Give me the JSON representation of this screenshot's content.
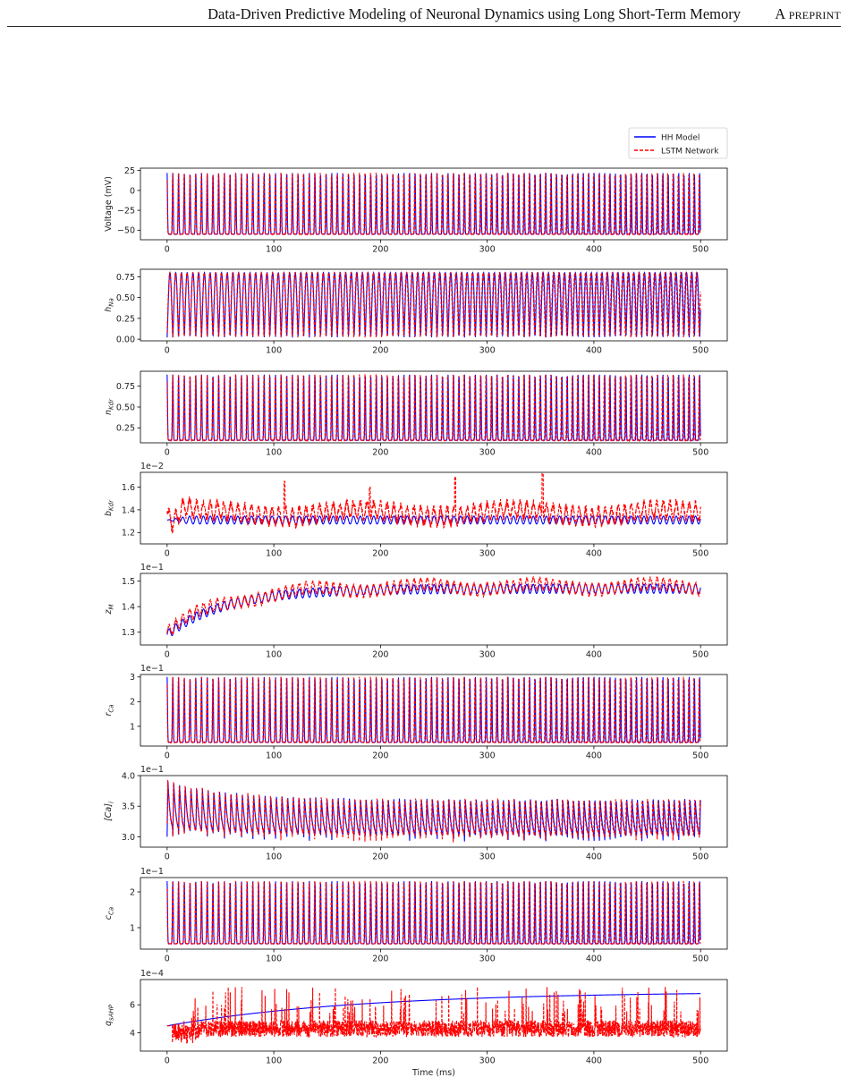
{
  "header": {
    "title": "Data-Driven Predictive Modeling of Neuronal Dynamics using Long Short-Term Memory",
    "tag": "A preprint"
  },
  "legend": {
    "placement": "top-right",
    "entries": [
      {
        "label": "HH Model",
        "color": "#0000ff",
        "style": "solid"
      },
      {
        "label": "LSTM Network",
        "color": "#ff0000",
        "style": "dashed"
      }
    ]
  },
  "chart_data": [
    {
      "type": "line",
      "ylabel": "Voltage (mV)",
      "ylabel_sub": "",
      "exponent": "",
      "xlim": [
        -25,
        525
      ],
      "ylim": [
        -62,
        28
      ],
      "yticks": [
        {
          "v": 25,
          "label": "25"
        },
        {
          "v": 0,
          "label": "0"
        },
        {
          "v": -25,
          "label": "−25"
        },
        {
          "v": -50,
          "label": "−50"
        }
      ],
      "xticks": [
        0,
        100,
        200,
        300,
        400,
        500
      ],
      "pattern": "spike",
      "base": -55,
      "peak": 22,
      "periodStart": 5.4,
      "periodEnd": 4.9,
      "lstmPhase": 0.035,
      "series": [
        {
          "name": "HH Model",
          "color": "#0000ff"
        },
        {
          "name": "LSTM Network",
          "color": "#ff0000"
        }
      ]
    },
    {
      "type": "line",
      "ylabel": "h",
      "ylabel_sub": "Na",
      "exponent": "",
      "xlim": [
        -25,
        525
      ],
      "ylim": [
        -0.02,
        0.84
      ],
      "yticks": [
        {
          "v": 0,
          "label": "0.00"
        },
        {
          "v": 0.25,
          "label": "0.25"
        },
        {
          "v": 0.5,
          "label": "0.50"
        },
        {
          "v": 0.75,
          "label": "0.75"
        }
      ],
      "xticks": [
        0,
        100,
        200,
        300,
        400,
        500
      ],
      "pattern": "wide",
      "base": 0.02,
      "peak": 0.8,
      "periodStart": 5.4,
      "periodEnd": 4.9,
      "lstmPhase": 0.035,
      "series": [
        {
          "name": "HH Model",
          "color": "#0000ff"
        },
        {
          "name": "LSTM Network",
          "color": "#ff0000"
        }
      ]
    },
    {
      "type": "line",
      "ylabel": "n",
      "ylabel_sub": "Kdr",
      "exponent": "",
      "xlim": [
        -25,
        525
      ],
      "ylim": [
        0.07,
        0.93
      ],
      "yticks": [
        {
          "v": 0.25,
          "label": "0.25"
        },
        {
          "v": 0.5,
          "label": "0.50"
        },
        {
          "v": 0.75,
          "label": "0.75"
        }
      ],
      "xticks": [
        0,
        100,
        200,
        300,
        400,
        500
      ],
      "pattern": "spike",
      "base": 0.1,
      "peak": 0.89,
      "periodStart": 5.4,
      "periodEnd": 4.9,
      "lstmPhase": 0.035,
      "series": [
        {
          "name": "HH Model",
          "color": "#0000ff"
        },
        {
          "name": "LSTM Network",
          "color": "#ff0000"
        }
      ]
    },
    {
      "type": "line",
      "ylabel": "b",
      "ylabel_sub": "Kdr",
      "exponent": "1e−2",
      "xlim": [
        -25,
        525
      ],
      "ylim": [
        1.1,
        1.73
      ],
      "yticks": [
        {
          "v": 1.2,
          "label": "1.2"
        },
        {
          "v": 1.4,
          "label": "1.4"
        },
        {
          "v": 1.6,
          "label": "1.6"
        }
      ],
      "xticks": [
        0,
        100,
        200,
        300,
        400,
        500
      ],
      "pattern": "slowSine",
      "hhCenter": 1.31,
      "hhAmp": 0.035,
      "lstmCenter": 1.37,
      "lstmAmp": 0.07,
      "spikesAt": [
        [
          110,
          1.65
        ],
        [
          190,
          1.6
        ],
        [
          270,
          1.69
        ],
        [
          352,
          1.72
        ]
      ],
      "periodStart": 6.5,
      "periodEnd": 6.0,
      "series": [
        {
          "name": "HH Model",
          "color": "#0000ff"
        },
        {
          "name": "LSTM Network",
          "color": "#ff0000"
        }
      ]
    },
    {
      "type": "line",
      "ylabel": "z",
      "ylabel_sub": "M",
      "exponent": "1e−1",
      "xlim": [
        -25,
        525
      ],
      "ylim": [
        1.25,
        1.53
      ],
      "yticks": [
        {
          "v": 1.3,
          "label": "1.3"
        },
        {
          "v": 1.4,
          "label": "1.4"
        },
        {
          "v": 1.5,
          "label": "1.5"
        }
      ],
      "xticks": [
        0,
        100,
        200,
        300,
        400,
        500
      ],
      "pattern": "rise",
      "start": 1.29,
      "plateau": 1.47,
      "tau": 55,
      "hhAmp": 0.018,
      "lstmAmp": 0.022,
      "periodStart": 6.5,
      "periodEnd": 6.0,
      "series": [
        {
          "name": "HH Model",
          "color": "#0000ff"
        },
        {
          "name": "LSTM Network",
          "color": "#ff0000"
        }
      ]
    },
    {
      "type": "line",
      "ylabel": "r",
      "ylabel_sub": "Ca",
      "exponent": "1e−1",
      "xlim": [
        -25,
        525
      ],
      "ylim": [
        0.2,
        3.1
      ],
      "yticks": [
        {
          "v": 1,
          "label": "1"
        },
        {
          "v": 2,
          "label": "2"
        },
        {
          "v": 3,
          "label": "3"
        }
      ],
      "xticks": [
        0,
        100,
        200,
        300,
        400,
        500
      ],
      "pattern": "spike",
      "base": 0.35,
      "peak": 3.0,
      "periodStart": 5.4,
      "periodEnd": 4.9,
      "lstmPhase": 0.035,
      "series": [
        {
          "name": "HH Model",
          "color": "#0000ff"
        },
        {
          "name": "LSTM Network",
          "color": "#ff0000"
        }
      ]
    },
    {
      "type": "line",
      "ylabel": "[Ca]",
      "ylabel_sub": "i",
      "exponent": "1e−1",
      "xlim": [
        -25,
        525
      ],
      "ylim": [
        2.83,
        4.0
      ],
      "yticks": [
        {
          "v": 3.0,
          "label": "3.0"
        },
        {
          "v": 3.5,
          "label": "3.5"
        },
        {
          "v": 4.0,
          "label": "4.0"
        }
      ],
      "xticks": [
        0,
        100,
        200,
        300,
        400,
        500
      ],
      "pattern": "decayOsc",
      "top0": 3.92,
      "topEnd": 3.62,
      "low0": 3.0,
      "lowEnd": 2.92,
      "tau": 60,
      "periodStart": 5.4,
      "periodEnd": 4.9,
      "lstmPhase": 0.035,
      "series": [
        {
          "name": "HH Model",
          "color": "#0000ff"
        },
        {
          "name": "LSTM Network",
          "color": "#ff0000"
        }
      ]
    },
    {
      "type": "line",
      "ylabel": "c",
      "ylabel_sub": "Ca",
      "exponent": "1e−1",
      "xlim": [
        -25,
        525
      ],
      "ylim": [
        0.4,
        2.4
      ],
      "yticks": [
        {
          "v": 1,
          "label": "1"
        },
        {
          "v": 2,
          "label": "2"
        }
      ],
      "xticks": [
        0,
        100,
        200,
        300,
        400,
        500
      ],
      "pattern": "spike",
      "base": 0.55,
      "peak": 2.3,
      "periodStart": 5.4,
      "periodEnd": 4.9,
      "lstmPhase": 0.035,
      "series": [
        {
          "name": "HH Model",
          "color": "#0000ff"
        },
        {
          "name": "LSTM Network",
          "color": "#ff0000"
        }
      ]
    },
    {
      "type": "line",
      "ylabel": "q",
      "ylabel_sub": "sAHP",
      "exponent": "1e−4",
      "xlim": [
        -25,
        525
      ],
      "ylim": [
        2.7,
        7.8
      ],
      "yticks": [
        {
          "v": 4,
          "label": "4"
        },
        {
          "v": 6,
          "label": "6"
        }
      ],
      "xticks": [
        0,
        100,
        200,
        300,
        400,
        500
      ],
      "xlabel": "Time (ms)",
      "pattern": "noisy",
      "hhStart": 4.5,
      "hhEnd": 6.8,
      "lstmBase": 4.3,
      "series": [
        {
          "name": "HH Model",
          "color": "#0000ff"
        },
        {
          "name": "LSTM Network",
          "color": "#ff0000"
        }
      ]
    }
  ]
}
